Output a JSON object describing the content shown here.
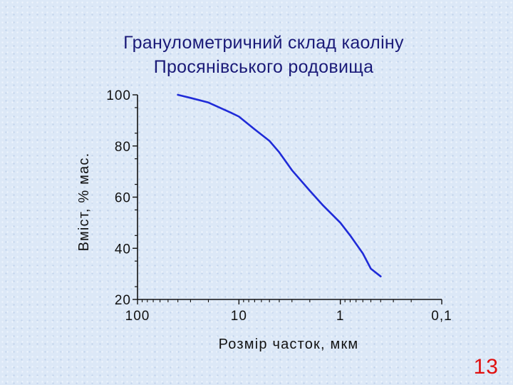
{
  "chart_data": {
    "type": "line",
    "title": [
      "Гранулометричний склад каоліну",
      "Просянівського родовища"
    ],
    "xlabel": "Розмір часток, мкм",
    "ylabel": "Вміст, % мас.",
    "x_scale": "log",
    "x_reversed": true,
    "xlim": [
      100,
      0.1
    ],
    "ylim": [
      20,
      100
    ],
    "xticks": [
      100,
      10,
      1,
      0.1
    ],
    "xtick_labels": [
      "100",
      "10",
      "1",
      "0,1"
    ],
    "yticks": [
      20,
      40,
      60,
      80,
      100
    ],
    "ytick_labels": [
      "20",
      "40",
      "60",
      "80",
      "100"
    ],
    "grid": false,
    "line_color": "#1f2bd8",
    "series": [
      {
        "x": [
          40,
          30,
          20,
          12,
          10,
          7,
          5,
          4,
          3,
          2,
          1.5,
          1,
          0.8,
          0.6,
          0.5,
          0.4
        ],
        "y": [
          100,
          98.8,
          97,
          93,
          91.5,
          86.5,
          82,
          77.5,
          70.5,
          62.5,
          57,
          50,
          45,
          38,
          32,
          29
        ]
      }
    ]
  },
  "page_number": "13"
}
